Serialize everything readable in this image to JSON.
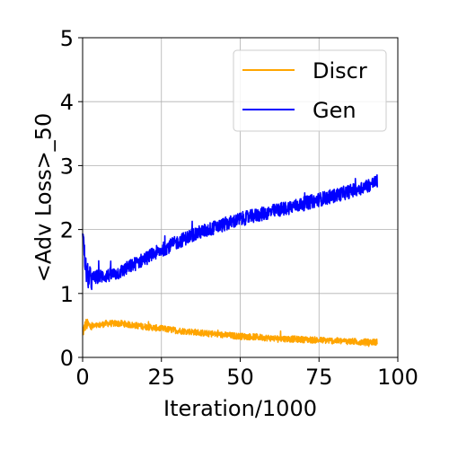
{
  "chart_data": {
    "type": "line",
    "title": "",
    "xlabel": "Iteration/1000",
    "ylabel": "<Adv Loss>_50",
    "xlim": [
      0,
      100
    ],
    "ylim": [
      0,
      5
    ],
    "xticks": [
      0,
      25,
      50,
      75,
      100
    ],
    "xtick_labels": [
      "0",
      "25",
      "50",
      "75",
      "100"
    ],
    "yticks": [
      0,
      1,
      2,
      3,
      4,
      5
    ],
    "ytick_labels": [
      "0",
      "1",
      "2",
      "3",
      "4",
      "5"
    ],
    "grid": true,
    "legend": "top-right",
    "series": [
      {
        "name": "Discr",
        "color": "#ffa500",
        "x": [
          0,
          0.5,
          1,
          2,
          3,
          5,
          7.5,
          10,
          12.5,
          15,
          20,
          25,
          30,
          35,
          40,
          45,
          50,
          55,
          60,
          65,
          70,
          75,
          80,
          85,
          90,
          92,
          93.5
        ],
        "y": [
          0.38,
          0.45,
          0.52,
          0.5,
          0.48,
          0.5,
          0.53,
          0.53,
          0.53,
          0.51,
          0.48,
          0.45,
          0.42,
          0.4,
          0.37,
          0.35,
          0.33,
          0.32,
          0.3,
          0.29,
          0.28,
          0.27,
          0.26,
          0.25,
          0.24,
          0.24,
          0.24
        ]
      },
      {
        "name": "Gen",
        "color": "#0000ff",
        "x": [
          0,
          0.3,
          0.8,
          1.5,
          2.5,
          4,
          6,
          8,
          10,
          12.5,
          15,
          20,
          25,
          30,
          35,
          40,
          45,
          50,
          55,
          60,
          65,
          70,
          75,
          80,
          85,
          90,
          92,
          93.5
        ],
        "y": [
          2.05,
          1.8,
          1.45,
          1.28,
          1.22,
          1.25,
          1.27,
          1.28,
          1.3,
          1.35,
          1.42,
          1.55,
          1.68,
          1.8,
          1.92,
          2.0,
          2.08,
          2.16,
          2.22,
          2.28,
          2.34,
          2.4,
          2.47,
          2.53,
          2.6,
          2.68,
          2.72,
          2.75
        ]
      }
    ]
  }
}
